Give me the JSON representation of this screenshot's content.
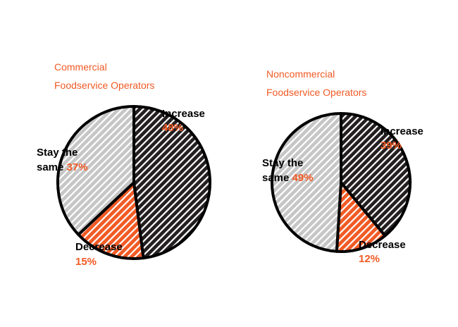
{
  "charts": [
    {
      "title_line1": "Commercial",
      "title_line2": "Foodservice Operators"
    },
    {
      "title_line1": "Noncommercial",
      "title_line2": "Foodservice Operators"
    }
  ],
  "colors": {
    "increase_fill": "#231f20",
    "increase_stripe": "#ffffff",
    "decrease_fill": "#f15a24",
    "decrease_stripe": "#ffffff",
    "same_fill": "#c6c6c6",
    "same_stripe": "#ffffff",
    "outline": "#000000",
    "label_text": "#000000",
    "label_value": "#f15a24"
  },
  "chart_data": [
    {
      "type": "pie",
      "title": "Commercial Foodservice Operators",
      "slices": [
        {
          "label": "Increase",
          "value": 48,
          "value_label": "48%"
        },
        {
          "label": "Decrease",
          "value": 15,
          "value_label": "15%"
        },
        {
          "label": "Stay the same",
          "value": 37,
          "value_label": "37%"
        }
      ]
    },
    {
      "type": "pie",
      "title": "Noncommercial Foodservice Operators",
      "slices": [
        {
          "label": "Increase",
          "value": 39,
          "value_label": "39%"
        },
        {
          "label": "Decrease",
          "value": 12,
          "value_label": "12%"
        },
        {
          "label": "Stay the same",
          "value": 49,
          "value_label": "49%"
        }
      ]
    }
  ]
}
